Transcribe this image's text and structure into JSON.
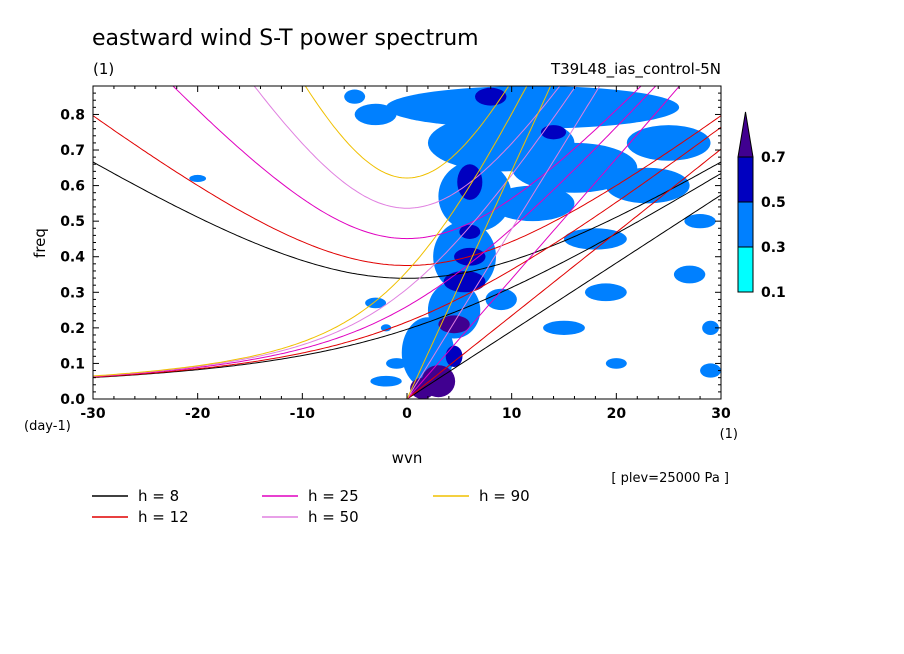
{
  "chart_data": {
    "type": "heatmap",
    "title": "eastward wind S-T power spectrum",
    "subtitle_left": "(1)",
    "subtitle_right": "T39L48_ias_control-5N",
    "xlabel": "wvn",
    "ylabel": "freq",
    "x_unit_label": "(1)",
    "y_unit_label": "(day-1)",
    "xlim": [
      -30,
      30
    ],
    "ylim": [
      0,
      0.88
    ],
    "x_ticks": [
      "-30",
      "-20",
      "-10",
      "0",
      "10",
      "20",
      "30"
    ],
    "y_ticks": [
      "0.0",
      "0.1",
      "0.2",
      "0.3",
      "0.4",
      "0.5",
      "0.6",
      "0.7",
      "0.8"
    ],
    "footnote": "[ plev=25000 Pa ]",
    "colorbar": {
      "levels": [
        "0.1",
        "0.3",
        "0.5",
        "0.7"
      ],
      "colors": [
        "#00ffff",
        "#0080ff",
        "#0000c0",
        "#400090"
      ]
    },
    "contours": [
      {
        "x": 3,
        "y": 0.05,
        "rx": 1.6,
        "ry": 0.045,
        "level": 3
      },
      {
        "x": 1.5,
        "y": 0.03,
        "rx": 1.2,
        "ry": 0.03,
        "level": 3
      },
      {
        "x": 4.5,
        "y": 0.12,
        "rx": 0.8,
        "ry": 0.03,
        "level": 2
      },
      {
        "x": 4.5,
        "y": 0.21,
        "rx": 1.5,
        "ry": 0.025,
        "level": 3
      },
      {
        "x": 5.5,
        "y": 0.33,
        "rx": 2.0,
        "ry": 0.03,
        "level": 2
      },
      {
        "x": 6,
        "y": 0.4,
        "rx": 1.5,
        "ry": 0.025,
        "level": 2
      },
      {
        "x": 6,
        "y": 0.47,
        "rx": 1.0,
        "ry": 0.02,
        "level": 2
      },
      {
        "x": 6,
        "y": 0.61,
        "rx": 1.2,
        "ry": 0.05,
        "level": 2
      },
      {
        "x": 8,
        "y": 0.85,
        "rx": 1.5,
        "ry": 0.025,
        "level": 2
      },
      {
        "x": 14,
        "y": 0.75,
        "rx": 1.2,
        "ry": 0.02,
        "level": 2
      },
      {
        "x": 13,
        "y": 0.8,
        "rx": 1.0,
        "ry": 0.02,
        "level": 1
      },
      {
        "x": 2,
        "y": 0.13,
        "rx": 2.5,
        "ry": 0.1,
        "level": 1
      },
      {
        "x": 4.5,
        "y": 0.25,
        "rx": 2.5,
        "ry": 0.08,
        "level": 1
      },
      {
        "x": 5.5,
        "y": 0.4,
        "rx": 3.0,
        "ry": 0.1,
        "level": 1
      },
      {
        "x": 6.5,
        "y": 0.57,
        "rx": 3.5,
        "ry": 0.1,
        "level": 1
      },
      {
        "x": 9,
        "y": 0.72,
        "rx": 7.0,
        "ry": 0.08,
        "level": 1
      },
      {
        "x": 12,
        "y": 0.82,
        "rx": 14.0,
        "ry": 0.06,
        "level": 1
      },
      {
        "x": 16,
        "y": 0.65,
        "rx": 6.0,
        "ry": 0.07,
        "level": 1
      },
      {
        "x": 12,
        "y": 0.55,
        "rx": 4.0,
        "ry": 0.05,
        "level": 1
      },
      {
        "x": 18,
        "y": 0.45,
        "rx": 3.0,
        "ry": 0.03,
        "level": 1
      },
      {
        "x": 23,
        "y": 0.6,
        "rx": 4.0,
        "ry": 0.05,
        "level": 1
      },
      {
        "x": 25,
        "y": 0.72,
        "rx": 4.0,
        "ry": 0.05,
        "level": 1
      },
      {
        "x": 19,
        "y": 0.3,
        "rx": 2.0,
        "ry": 0.025,
        "level": 1
      },
      {
        "x": 27,
        "y": 0.35,
        "rx": 1.5,
        "ry": 0.025,
        "level": 1
      },
      {
        "x": 28,
        "y": 0.5,
        "rx": 1.5,
        "ry": 0.02,
        "level": 1
      },
      {
        "x": 15,
        "y": 0.2,
        "rx": 2.0,
        "ry": 0.02,
        "level": 1
      },
      {
        "x": -3,
        "y": 0.8,
        "rx": 2.0,
        "ry": 0.03,
        "level": 1
      },
      {
        "x": -5,
        "y": 0.85,
        "rx": 1.0,
        "ry": 0.02,
        "level": 1
      },
      {
        "x": -3,
        "y": 0.27,
        "rx": 1.0,
        "ry": 0.015,
        "level": 1
      },
      {
        "x": -2,
        "y": 0.2,
        "rx": 0.5,
        "ry": 0.01,
        "level": 1
      },
      {
        "x": -20,
        "y": 0.62,
        "rx": 0.8,
        "ry": 0.01,
        "level": 1
      },
      {
        "x": -1,
        "y": 0.1,
        "rx": 1.0,
        "ry": 0.015,
        "level": 1
      },
      {
        "x": -2,
        "y": 0.05,
        "rx": 1.5,
        "ry": 0.015,
        "level": 1
      },
      {
        "x": 29,
        "y": 0.08,
        "rx": 1.0,
        "ry": 0.02,
        "level": 1
      },
      {
        "x": 29,
        "y": 0.2,
        "rx": 0.8,
        "ry": 0.02,
        "level": 1
      },
      {
        "x": 20,
        "y": 0.1,
        "rx": 1.0,
        "ry": 0.015,
        "level": 1
      },
      {
        "x": 9,
        "y": 0.28,
        "rx": 1.5,
        "ry": 0.03,
        "level": 1
      }
    ],
    "dispersion_curves": [
      {
        "label": "h =  8",
        "h": 8,
        "color": "#000000"
      },
      {
        "label": "h = 12",
        "h": 12,
        "color": "#e00000"
      },
      {
        "label": "h = 25",
        "h": 25,
        "color": "#e000c0"
      },
      {
        "label": "h = 50",
        "h": 50,
        "color": "#e080e0"
      },
      {
        "label": "h = 90",
        "h": 90,
        "color": "#f0c000"
      }
    ]
  }
}
